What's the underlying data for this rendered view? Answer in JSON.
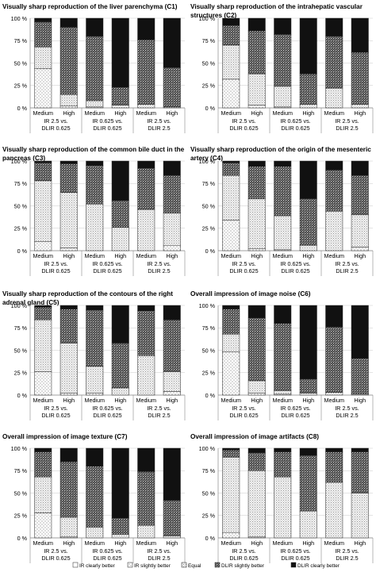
{
  "legend": {
    "entries": [
      {
        "label": "IR clearly better",
        "pattern": "none"
      },
      {
        "label": "IR slightly better",
        "pattern": "dots"
      },
      {
        "label": "Equal",
        "pattern": "sparse"
      },
      {
        "label": "DLIR slightly better",
        "pattern": "hatch"
      },
      {
        "label": "DLIR clearly better",
        "pattern": "solid"
      }
    ]
  },
  "chart_data": [
    {
      "type": "bar",
      "stacked": true,
      "title_lines": [
        "Visually sharp reproduction of the liver parenchyma (C1)"
      ],
      "ytick_labels": [
        "0 %",
        "25 %",
        "50 %",
        "75 %",
        "100 %"
      ],
      "ylim": [
        0,
        100
      ],
      "categories": [
        "Medium",
        "High",
        "Medium",
        "High",
        "Medium",
        "High"
      ],
      "groups": [
        [
          "IR 2.5 vs.",
          "DLIR 0.625"
        ],
        [
          "IR 0.625 vs.",
          "DLIR 0.625"
        ],
        [
          "IR 2.5 vs.",
          "DLIR 2.5"
        ]
      ],
      "series": [
        {
          "name": "IR clearly better",
          "values": [
            0,
            0,
            0,
            0,
            0,
            0
          ]
        },
        {
          "name": "IR slightly better",
          "values": [
            44,
            2,
            1,
            0,
            0,
            0
          ]
        },
        {
          "name": "Equal",
          "values": [
            24,
            13,
            7,
            3,
            4,
            1
          ]
        },
        {
          "name": "DLIR slightly better",
          "values": [
            28,
            75,
            72,
            20,
            72,
            44
          ]
        },
        {
          "name": "DLIR clearly better",
          "values": [
            4,
            10,
            20,
            77,
            24,
            55
          ]
        }
      ]
    },
    {
      "type": "bar",
      "stacked": true,
      "title_lines": [
        "Visually sharp reproduction of the intrahepatic vascular",
        "structures (C2)"
      ],
      "ytick_labels": [
        "0 %",
        "25 %",
        "50 %",
        "75 %",
        "100 %"
      ],
      "ylim": [
        0,
        100
      ],
      "categories": [
        "Medium",
        "High",
        "Medium",
        "High",
        "Medium",
        "High"
      ],
      "groups": [
        [
          "IR 2.5 vs.",
          "DLIR 0.625"
        ],
        [
          "IR 0.625 vs.",
          "DLIR 0.625"
        ],
        [
          "IR 2.5 vs.",
          "DLIR 2.5"
        ]
      ],
      "series": [
        {
          "name": "IR clearly better",
          "values": [
            0,
            0,
            0,
            0,
            0,
            0
          ]
        },
        {
          "name": "IR slightly better",
          "values": [
            32,
            3,
            1,
            0,
            0,
            0
          ]
        },
        {
          "name": "Equal",
          "values": [
            38,
            35,
            23,
            4,
            22,
            4
          ]
        },
        {
          "name": "DLIR slightly better",
          "values": [
            22,
            48,
            58,
            34,
            58,
            58
          ]
        },
        {
          "name": "DLIR clearly better",
          "values": [
            8,
            14,
            18,
            62,
            20,
            38
          ]
        }
      ]
    },
    {
      "type": "bar",
      "stacked": true,
      "title_lines": [
        "Visually sharp reproduction of the common bile duct in the",
        "pancreas (C3)"
      ],
      "ytick_labels": [
        "0 %",
        "25 %",
        "50 %",
        "75 %",
        "100 %"
      ],
      "ylim": [
        0,
        100
      ],
      "categories": [
        "Medium",
        "High",
        "Medium",
        "High",
        "Medium",
        "High"
      ],
      "groups": [
        [
          "IR 2.5 vs.",
          "DLIR 0.625"
        ],
        [
          "IR 0.625 vs.",
          "DLIR 0.625"
        ],
        [
          "IR 2.5 vs.",
          "DLIR 2.5"
        ]
      ],
      "series": [
        {
          "name": "IR clearly better",
          "values": [
            0,
            0,
            0,
            0,
            0,
            0
          ]
        },
        {
          "name": "IR slightly better",
          "values": [
            10,
            3,
            0,
            0,
            0,
            6
          ]
        },
        {
          "name": "Equal",
          "values": [
            68,
            62,
            52,
            26,
            46,
            36
          ]
        },
        {
          "name": "DLIR slightly better",
          "values": [
            20,
            32,
            43,
            30,
            46,
            42
          ]
        },
        {
          "name": "DLIR clearly better",
          "values": [
            2,
            3,
            5,
            44,
            8,
            16
          ]
        }
      ]
    },
    {
      "type": "bar",
      "stacked": true,
      "title_lines": [
        "Visually sharp reproduction of the origin of the mesenteric",
        "artery (C4)"
      ],
      "ytick_labels": [
        "0 %",
        "25 %",
        "50 %",
        "75 %",
        "100 %"
      ],
      "ylim": [
        0,
        100
      ],
      "categories": [
        "Medium",
        "High",
        "Medium",
        "High",
        "Medium",
        "High"
      ],
      "groups": [
        [
          "IR 2.5 vs.",
          "DLIR 0.625"
        ],
        [
          "IR 0.625 vs.",
          "DLIR 0.625"
        ],
        [
          "IR 2.5 vs.",
          "DLIR 2.5"
        ]
      ],
      "series": [
        {
          "name": "IR clearly better",
          "values": [
            0,
            0,
            0,
            0,
            0,
            0
          ]
        },
        {
          "name": "IR slightly better",
          "values": [
            34,
            2,
            1,
            0,
            0,
            4
          ]
        },
        {
          "name": "Equal",
          "values": [
            50,
            56,
            38,
            6,
            44,
            36
          ]
        },
        {
          "name": "DLIR slightly better",
          "values": [
            14,
            36,
            55,
            52,
            46,
            44
          ]
        },
        {
          "name": "DLIR clearly better",
          "values": [
            2,
            6,
            6,
            42,
            10,
            16
          ]
        }
      ]
    },
    {
      "type": "bar",
      "stacked": true,
      "title_lines": [
        "Visually sharp reproduction of the contours of the right",
        "adrenal gland (C5)"
      ],
      "ytick_labels": [
        "0 %",
        "25 %",
        "50 %",
        "75 %",
        "100 %"
      ],
      "ylim": [
        0,
        100
      ],
      "categories": [
        "Medium",
        "High",
        "Medium",
        "High",
        "Medium",
        "High"
      ],
      "groups": [
        [
          "IR 2.5 vs.",
          "DLIR 0.625"
        ],
        [
          "IR 0.625 vs.",
          "DLIR 0.625"
        ],
        [
          "IR 2.5 vs.",
          "DLIR 2.5"
        ]
      ],
      "series": [
        {
          "name": "IR clearly better",
          "values": [
            0,
            0,
            0,
            0,
            0,
            0
          ]
        },
        {
          "name": "IR slightly better",
          "values": [
            26,
            2,
            2,
            0,
            0,
            4
          ]
        },
        {
          "name": "Equal",
          "values": [
            58,
            56,
            30,
            8,
            44,
            22
          ]
        },
        {
          "name": "DLIR slightly better",
          "values": [
            14,
            38,
            63,
            50,
            50,
            58
          ]
        },
        {
          "name": "DLIR clearly better",
          "values": [
            2,
            4,
            5,
            42,
            6,
            16
          ]
        }
      ]
    },
    {
      "type": "bar",
      "stacked": true,
      "title_lines": [
        "Overall impression of image noise (C6)"
      ],
      "ytick_labels": [
        "0 %",
        "25 %",
        "50 %",
        "75 %",
        "100 %"
      ],
      "ylim": [
        0,
        100
      ],
      "categories": [
        "Medium",
        "High",
        "Medium",
        "High",
        "Medium",
        "High"
      ],
      "groups": [
        [
          "IR 2.5 vs.",
          "DLIR 0.625"
        ],
        [
          "IR 0.625 vs.",
          "DLIR 0.625"
        ],
        [
          "IR 2.5 vs.",
          "DLIR 2.5"
        ]
      ],
      "series": [
        {
          "name": "IR clearly better",
          "values": [
            0,
            0,
            0,
            0,
            0,
            0
          ]
        },
        {
          "name": "IR slightly better",
          "values": [
            48,
            2,
            1,
            0,
            0,
            0
          ]
        },
        {
          "name": "Equal",
          "values": [
            20,
            14,
            4,
            2,
            3,
            1
          ]
        },
        {
          "name": "DLIR slightly better",
          "values": [
            28,
            70,
            75,
            16,
            73,
            40
          ]
        },
        {
          "name": "DLIR clearly better",
          "values": [
            4,
            14,
            20,
            82,
            24,
            59
          ]
        }
      ]
    },
    {
      "type": "bar",
      "stacked": true,
      "title_lines": [
        "Overall impression of image texture (C7)"
      ],
      "ytick_labels": [
        "0 %",
        "25 %",
        "50 %",
        "75 %",
        "100 %"
      ],
      "ylim": [
        0,
        100
      ],
      "categories": [
        "Medium",
        "High",
        "Medium",
        "High",
        "Medium",
        "High"
      ],
      "groups": [
        [
          "IR 2.5 vs.",
          "DLIR 0.625"
        ],
        [
          "IR 0.625 vs.",
          "DLIR 0.625"
        ],
        [
          "IR 2.5 vs.",
          "DLIR 2.5"
        ]
      ],
      "series": [
        {
          "name": "IR clearly better",
          "values": [
            0,
            0,
            0,
            0,
            0,
            0
          ]
        },
        {
          "name": "IR slightly better",
          "values": [
            28,
            1,
            0,
            0,
            0,
            0
          ]
        },
        {
          "name": "Equal",
          "values": [
            40,
            22,
            12,
            4,
            14,
            2
          ]
        },
        {
          "name": "DLIR slightly better",
          "values": [
            28,
            62,
            68,
            18,
            60,
            40
          ]
        },
        {
          "name": "DLIR clearly better",
          "values": [
            4,
            15,
            20,
            78,
            26,
            58
          ]
        }
      ]
    },
    {
      "type": "bar",
      "stacked": true,
      "title_lines": [
        "Overall impression of image artifacts (C8)"
      ],
      "ytick_labels": [
        "0 %",
        "25 %",
        "50 %",
        "75 %",
        "100 %"
      ],
      "ylim": [
        0,
        100
      ],
      "categories": [
        "Medium",
        "High",
        "Medium",
        "High",
        "Medium",
        "High"
      ],
      "groups": [
        [
          "IR 2.5 vs.",
          "DLIR 0.625"
        ],
        [
          "IR 0.625 vs.",
          "DLIR 0.625"
        ],
        [
          "IR 2.5 vs.",
          "DLIR 2.5"
        ]
      ],
      "series": [
        {
          "name": "IR clearly better",
          "values": [
            0,
            0,
            0,
            0,
            0,
            0
          ]
        },
        {
          "name": "IR slightly better",
          "values": [
            6,
            1,
            0,
            0,
            0,
            0
          ]
        },
        {
          "name": "Equal",
          "values": [
            84,
            74,
            68,
            30,
            62,
            50
          ]
        },
        {
          "name": "DLIR slightly better",
          "values": [
            8,
            20,
            28,
            62,
            34,
            46
          ]
        },
        {
          "name": "DLIR clearly better",
          "values": [
            2,
            5,
            4,
            8,
            4,
            4
          ]
        }
      ]
    }
  ]
}
